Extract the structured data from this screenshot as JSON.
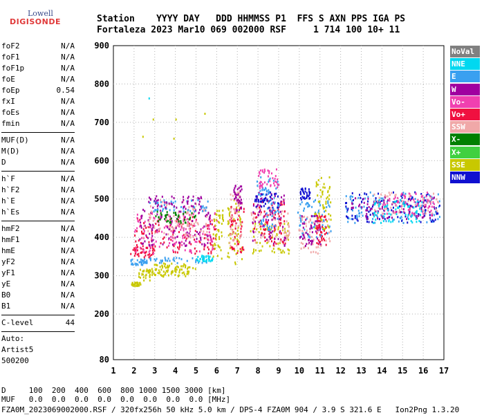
{
  "logo": {
    "lowell": "Lowell",
    "digisonde": "DIGISONDE"
  },
  "header": {
    "line1": "Station    YYYY DAY   DDD HHMMSS P1  FFS S AXN PPS IGA PS",
    "line2": "Fortaleza 2023 Mar10 069 002000 RSF     1 714 100 10+ 11"
  },
  "params": [
    {
      "name": "foF2",
      "value": "N/A"
    },
    {
      "name": "foF1",
      "value": "N/A"
    },
    {
      "name": "foF1p",
      "value": "N/A"
    },
    {
      "name": "foE",
      "value": "N/A"
    },
    {
      "name": "foEp",
      "value": "0.54"
    },
    {
      "name": "fxI",
      "value": "N/A"
    },
    {
      "name": "foEs",
      "value": "N/A"
    },
    {
      "name": "fmin",
      "value": "N/A"
    },
    {
      "name": "MUF(D)",
      "value": "N/A"
    },
    {
      "name": "M(D)",
      "value": "N/A"
    },
    {
      "name": "D",
      "value": "N/A"
    },
    {
      "name": "h`F",
      "value": "N/A"
    },
    {
      "name": "h`F2",
      "value": "N/A"
    },
    {
      "name": "h`E",
      "value": "N/A"
    },
    {
      "name": "h`Es",
      "value": "N/A"
    },
    {
      "name": "hmF2",
      "value": "N/A"
    },
    {
      "name": "hmF1",
      "value": "N/A"
    },
    {
      "name": "hmE",
      "value": "N/A"
    },
    {
      "name": "yF2",
      "value": "N/A"
    },
    {
      "name": "yF1",
      "value": "N/A"
    },
    {
      "name": "yE",
      "value": "N/A"
    },
    {
      "name": "B0",
      "value": "N/A"
    },
    {
      "name": "B1",
      "value": "N/A"
    },
    {
      "name": "C-level",
      "value": "44"
    }
  ],
  "auto": {
    "label": "Auto:",
    "artist": "Artist5",
    "code": "500200"
  },
  "legend": [
    {
      "label": "NoVal",
      "color": "#808080"
    },
    {
      "label": "NNE",
      "color": "#00d8f0"
    },
    {
      "label": "E",
      "color": "#3aa0f0"
    },
    {
      "label": "W",
      "color": "#a000a0"
    },
    {
      "label": "Vo-",
      "color": "#f040b0"
    },
    {
      "label": "Vo+",
      "color": "#f01040"
    },
    {
      "label": "SSW",
      "color": "#f0a8a8"
    },
    {
      "label": "X-",
      "color": "#008000"
    },
    {
      "label": "X+",
      "color": "#40d040"
    },
    {
      "label": "SSE",
      "color": "#c8c800"
    },
    {
      "label": "NNW",
      "color": "#1010d0"
    }
  ],
  "footer": {
    "d_line": "D     100  200  400  600  800 1000 1500 3000 [km]",
    "muf_line": "MUF   0.0  0.0  0.0  0.0  0.0  0.0  0.0  0.0 [MHz]",
    "file_line": "FZA0M_2023069002000.RSF / 320fx256h 50 kHz 5.0 km / DPS-4 FZA0M 904 / 3.9 S 321.6 E   Ion2Png 1.3.20"
  },
  "chart_data": {
    "type": "scatter",
    "xlim": [
      1,
      17
    ],
    "ylim": [
      80,
      900
    ],
    "xticks": [
      "1",
      "2",
      "3",
      "4",
      "5",
      "6",
      "7",
      "8",
      "9",
      "10",
      "11",
      "12",
      "13",
      "14",
      "15",
      "16",
      "17"
    ],
    "yticks": [
      "80",
      "200",
      "300",
      "400",
      "500",
      "600",
      "700",
      "800",
      "900"
    ],
    "xlabel": "",
    "ylabel": "",
    "grid": "dotted",
    "clusters": [
      {
        "x": [
          1.8,
          2.3
        ],
        "y": [
          275,
          285
        ],
        "series": "SSE"
      },
      {
        "x": [
          2.2,
          3.0
        ],
        "y": [
          290,
          320
        ],
        "series": "SSE"
      },
      {
        "x": [
          2.8,
          4.5
        ],
        "y": [
          300,
          335
        ],
        "series": "SSE"
      },
      {
        "x": [
          3.0,
          5.0
        ],
        "y": [
          300,
          330
        ],
        "series": "SSE"
      },
      {
        "x": [
          1.8,
          2.6
        ],
        "y": [
          330,
          345
        ],
        "series": "E"
      },
      {
        "x": [
          2.3,
          5.6
        ],
        "y": [
          335,
          350
        ],
        "series": "E"
      },
      {
        "x": [
          5.0,
          5.8
        ],
        "y": [
          340,
          355
        ],
        "series": "NNE"
      },
      {
        "x": [
          1.8,
          3.0
        ],
        "y": [
          350,
          380
        ],
        "series": "Vo+"
      },
      {
        "x": [
          2.0,
          6.0
        ],
        "y": [
          360,
          460
        ],
        "series": "Vo+"
      },
      {
        "x": [
          2.0,
          6.0
        ],
        "y": [
          360,
          470
        ],
        "series": "Vo-"
      },
      {
        "x": [
          2.2,
          5.8
        ],
        "y": [
          380,
          480
        ],
        "series": "W"
      },
      {
        "x": [
          2.4,
          5.5
        ],
        "y": [
          400,
          500
        ],
        "series": "SSW"
      },
      {
        "x": [
          2.6,
          5.6
        ],
        "y": [
          470,
          500
        ],
        "series": "E"
      },
      {
        "x": [
          2.6,
          5.3
        ],
        "y": [
          480,
          510
        ],
        "series": "W"
      },
      {
        "x": [
          3.0,
          5.0
        ],
        "y": [
          440,
          470
        ],
        "series": "X-"
      },
      {
        "x": [
          5.8,
          6.3
        ],
        "y": [
          340,
          480
        ],
        "series": "SSE"
      },
      {
        "x": [
          6.5,
          7.2
        ],
        "y": [
          330,
          500
        ],
        "series": "SSE"
      },
      {
        "x": [
          6.6,
          7.3
        ],
        "y": [
          360,
          500
        ],
        "series": "Vo+"
      },
      {
        "x": [
          6.6,
          7.2
        ],
        "y": [
          380,
          520
        ],
        "series": "SSW"
      },
      {
        "x": [
          6.8,
          7.2
        ],
        "y": [
          470,
          540
        ],
        "series": "W"
      },
      {
        "x": [
          7.6,
          9.5
        ],
        "y": [
          360,
          440
        ],
        "series": "SSE"
      },
      {
        "x": [
          7.6,
          9.5
        ],
        "y": [
          380,
          480
        ],
        "series": "SSW"
      },
      {
        "x": [
          7.7,
          9.3
        ],
        "y": [
          380,
          500
        ],
        "series": "Vo+"
      },
      {
        "x": [
          7.7,
          9.3
        ],
        "y": [
          380,
          520
        ],
        "series": "W"
      },
      {
        "x": [
          7.8,
          9.0
        ],
        "y": [
          480,
          520
        ],
        "series": "NNW"
      },
      {
        "x": [
          7.9,
          9.0
        ],
        "y": [
          420,
          560
        ],
        "series": "E"
      },
      {
        "x": [
          8.0,
          9.0
        ],
        "y": [
          530,
          580
        ],
        "series": "Vo-"
      },
      {
        "x": [
          9.9,
          11.5
        ],
        "y": [
          360,
          460
        ],
        "series": "SSW"
      },
      {
        "x": [
          9.9,
          11.5
        ],
        "y": [
          400,
          500
        ],
        "series": "E"
      },
      {
        "x": [
          10.0,
          11.0
        ],
        "y": [
          380,
          460
        ],
        "series": "W"
      },
      {
        "x": [
          10.0,
          10.5
        ],
        "y": [
          500,
          530
        ],
        "series": "NNW"
      },
      {
        "x": [
          10.7,
          11.5
        ],
        "y": [
          420,
          560
        ],
        "series": "SSE"
      },
      {
        "x": [
          10.8,
          11.3
        ],
        "y": [
          380,
          460
        ],
        "series": "Vo+"
      },
      {
        "x": [
          12.2,
          16.8
        ],
        "y": [
          440,
          520
        ],
        "series": "E"
      },
      {
        "x": [
          12.2,
          16.8
        ],
        "y": [
          440,
          520
        ],
        "series": "NNW"
      },
      {
        "x": [
          12.5,
          16.5
        ],
        "y": [
          450,
          510
        ],
        "series": "W"
      },
      {
        "x": [
          13.5,
          16.8
        ],
        "y": [
          460,
          520
        ],
        "series": "SSW"
      },
      {
        "x": [
          14.0,
          16.5
        ],
        "y": [
          460,
          520
        ],
        "series": "Vo-"
      },
      {
        "x": [
          13.5,
          16.0
        ],
        "y": [
          440,
          500
        ],
        "series": "NNE"
      }
    ],
    "isolated_points": [
      {
        "x": 2.7,
        "y": 765,
        "series": "NNE"
      },
      {
        "x": 3.9,
        "y": 660,
        "series": "SSE"
      },
      {
        "x": 4.0,
        "y": 710,
        "series": "SSE"
      },
      {
        "x": 5.4,
        "y": 725,
        "series": "SSE"
      },
      {
        "x": 2.4,
        "y": 665,
        "series": "SSE"
      },
      {
        "x": 2.9,
        "y": 710,
        "series": "SSE"
      }
    ]
  }
}
